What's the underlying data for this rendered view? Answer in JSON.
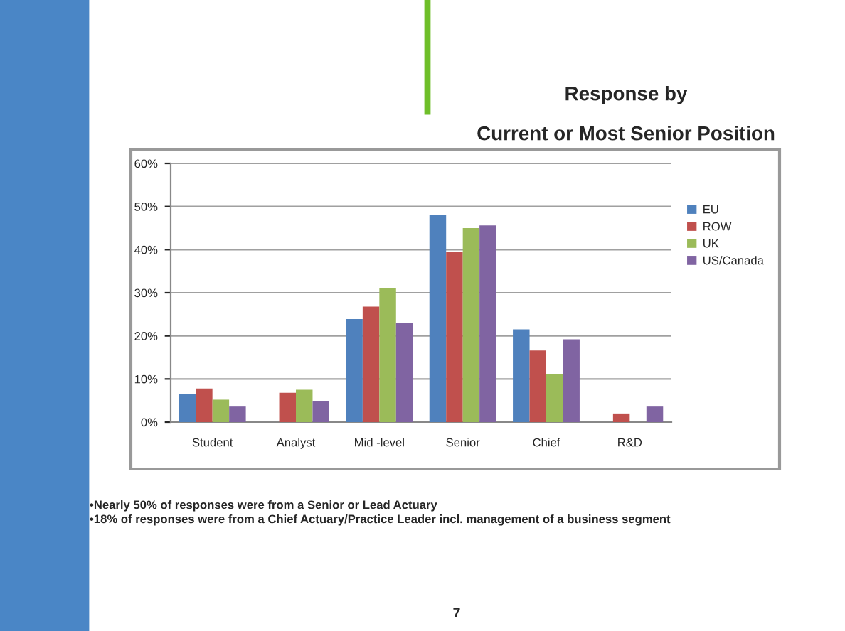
{
  "chart_data": {
    "type": "bar",
    "title": "Response by\nCurrent or Most Senior Position",
    "categories": [
      "Student",
      "Analyst",
      "Mid -level",
      "Senior",
      "Chief",
      "R&D"
    ],
    "series": [
      {
        "name": "EU",
        "color": "#4f81bd",
        "values": [
          6.5,
          null,
          23.9,
          48.0,
          21.5,
          null
        ]
      },
      {
        "name": "ROW",
        "color": "#c0504d",
        "values": [
          7.8,
          6.8,
          26.8,
          39.5,
          16.6,
          2.0
        ]
      },
      {
        "name": "UK",
        "color": "#9bbb59",
        "values": [
          5.2,
          7.5,
          31.0,
          45.0,
          11.1,
          null
        ]
      },
      {
        "name": "US/Canada",
        "color": "#8064a2",
        "values": [
          3.6,
          4.9,
          22.9,
          45.6,
          19.2,
          3.6
        ]
      }
    ],
    "ylim": [
      0,
      60
    ],
    "yticks": [
      {
        "value": 0,
        "label": "0%"
      },
      {
        "value": 10,
        "label": "10%"
      },
      {
        "value": 20,
        "label": "20%"
      },
      {
        "value": 30,
        "label": "30%"
      },
      {
        "value": 40,
        "label": "40%"
      },
      {
        "value": 50,
        "label": "50%"
      },
      {
        "value": 60,
        "label": "60%"
      }
    ],
    "grid": "y",
    "legend": "right",
    "annotations": [
      "•Nearly 50% of responses were from a Senior or Lead Actuary",
      "•18% of responses were from a Chief Actuary/Practice Leader incl. management of a business segment",
      "7"
    ]
  }
}
